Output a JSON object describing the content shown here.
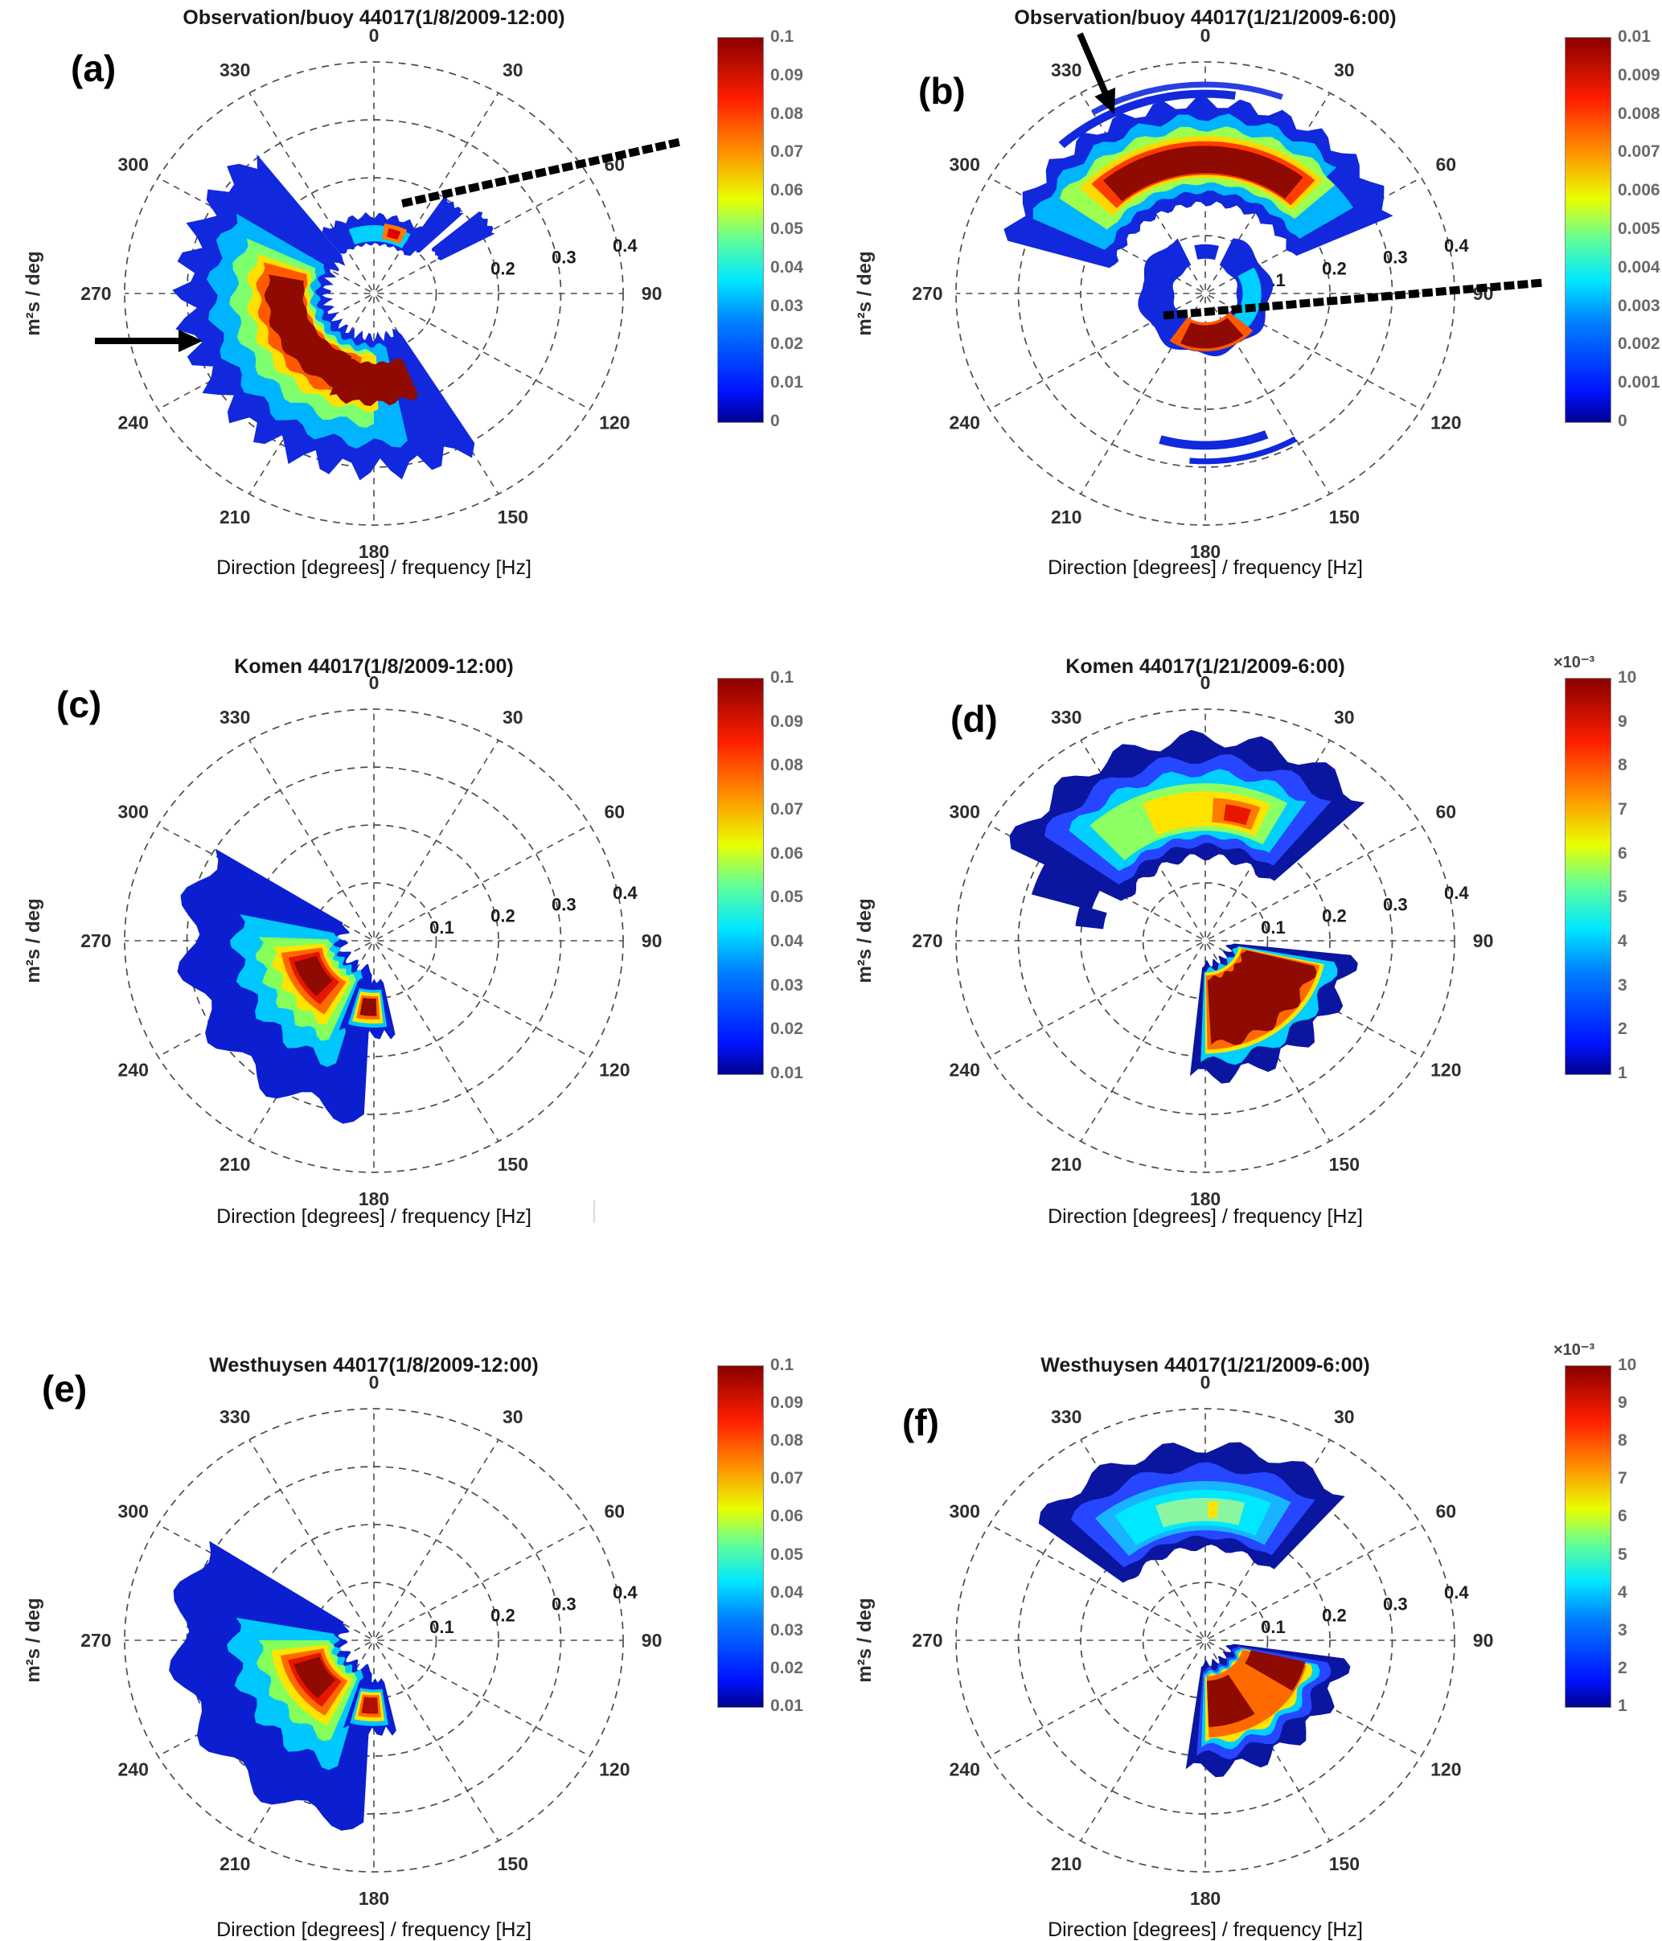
{
  "page": {
    "background": "#ffffff",
    "kind": "figure of six polar directional wave spectra"
  },
  "chart_data": {
    "type": "heatmap",
    "variant": "polar_directional_wave_spectrum",
    "layout": "3 rows x 2 columns, each panel with jet colorbar",
    "shared": {
      "angle_ticks_deg": [
        0,
        30,
        60,
        90,
        120,
        150,
        180,
        210,
        240,
        270,
        300,
        330
      ],
      "radial_ticks_hz": [
        0.1,
        0.2,
        0.3,
        0.4
      ],
      "radial_range_hz": [
        0,
        0.4
      ],
      "xlabel": "Direction [degrees] / frequency [Hz]",
      "ylabel": "m²s / deg",
      "colormap": "jet",
      "grid": "dashed"
    },
    "panels": [
      {
        "letter": "(a)",
        "title": "Observation/buoy 44017(1/8/2009-12:00)",
        "radial_labels": [
          "0.2",
          "0.3",
          "0.4"
        ],
        "colorbar": {
          "min": 0,
          "max": 0.1,
          "exponent": "",
          "ticks": [
            "0",
            "0.01",
            "0.02",
            "0.03",
            "0.04",
            "0.05",
            "0.06",
            "0.07",
            "0.08",
            "0.09",
            "0.1"
          ]
        },
        "peak_estimate": {
          "direction_deg": 250,
          "frequency_hz": 0.14
        },
        "annotations": {
          "arrow": [
            118,
            424,
            252,
            424
          ],
          "dotted_line": [
            505,
            252,
            848,
            176
          ]
        },
        "spectrum_blobs": [
          [
            148,
            322,
            0.075,
            0.305,
            "#1128dc",
            0.02,
            16
          ],
          [
            168,
            302,
            0.09,
            0.26,
            "#00b4ff",
            0.01,
            9
          ],
          [
            180,
            295,
            0.1,
            0.225,
            "#7dff6e",
            0.008,
            7
          ],
          [
            178,
            290,
            0.105,
            0.2,
            "#ffe000",
            0.006,
            7
          ],
          [
            190,
            287,
            0.11,
            0.185,
            "#ff5a00",
            0.005,
            6
          ],
          [
            198,
            281,
            0.113,
            0.172,
            "#8f0a00",
            0.004,
            5
          ],
          [
            158,
            202,
            0.12,
            0.19,
            "#8f0a00",
            0.006,
            4
          ],
          [
            322,
            402,
            0.085,
            0.135,
            "#1128dc",
            0.006,
            8
          ],
          [
            340,
            390,
            0.09,
            0.118,
            "#00cfff",
            0,
            0
          ],
          [
            368,
            386,
            0.095,
            0.122,
            "#ff7a00",
            0,
            0
          ],
          [
            372,
            382,
            0.1,
            0.115,
            "#e00000",
            0,
            0
          ],
          [
            34,
            46,
            0.1,
            0.2,
            "#1128dc",
            0.004,
            3
          ],
          [
            50,
            62,
            0.12,
            0.22,
            "#1128dc",
            0.004,
            3
          ]
        ]
      },
      {
        "letter": "(b)",
        "title": "Observation/buoy 44017(1/21/2009-6:00)",
        "radial_labels": [
          "0.1",
          "0.2",
          "0.3",
          "0.4"
        ],
        "colorbar": {
          "min": 0,
          "max": 0.01,
          "exponent": "",
          "ticks": [
            "0",
            "0.001",
            "0.002",
            "0.003",
            "0.004",
            "0.005",
            "0.006",
            "0.007",
            "0.008",
            "0.009",
            "0.01"
          ]
        },
        "peak_estimate": {
          "primary": {
            "direction_deg": 355,
            "frequency_hz": 0.23
          },
          "secondary": {
            "direction_deg": 165,
            "frequency_hz": 0.075
          }
        },
        "annotations": {
          "arrow": [
            309,
            42,
            352,
            142
          ],
          "dotted_line": [
            418,
            392,
            880,
            352
          ]
        },
        "spectrum_blobs": [
          [
            286,
            426,
            0.155,
            0.33,
            "#1128dc",
            0.012,
            12
          ],
          [
            295,
            418,
            0.175,
            0.305,
            "#00b4ff",
            0.008,
            9
          ],
          [
            305,
            408,
            0.19,
            0.285,
            "#9dff4f",
            0.006,
            7
          ],
          [
            312,
            404,
            0.2,
            0.272,
            "#ffd800",
            0,
            0
          ],
          [
            316,
            402,
            0.205,
            0.263,
            "#ff3c00",
            0,
            0
          ],
          [
            320,
            398,
            0.208,
            0.255,
            "#8f0a00",
            0,
            0
          ],
          [
            318,
            368,
            0.338,
            0.352,
            "#1128dc",
            0,
            0
          ],
          [
            330,
            380,
            0.356,
            0.366,
            "#2a3fe0",
            0,
            0
          ],
          [
            44,
            64,
            0.28,
            0.315,
            "#1128dc",
            0,
            0
          ],
          [
            25,
            335,
            0.052,
            0.105,
            "#1128dc",
            0.005,
            7
          ],
          [
            60,
            200,
            0.06,
            0.09,
            "#00cfff",
            0,
            0
          ],
          [
            130,
            215,
            0.05,
            0.1,
            "#ff5a00",
            0,
            0
          ],
          [
            140,
            205,
            0.055,
            0.095,
            "#8f0a00",
            0,
            0
          ],
          [
            348,
            375,
            0.06,
            0.085,
            "#1128dc",
            0,
            0
          ],
          [
            158,
            196,
            0.255,
            0.27,
            "#1128dc",
            0,
            0
          ],
          [
            150,
            185,
            0.285,
            0.295,
            "#1128dc",
            0,
            0
          ]
        ]
      },
      {
        "letter": "(c)",
        "title": "Komen 44017(1/8/2009-12:00)",
        "radial_labels": [
          "0.1",
          "0.2",
          "0.3",
          "0.4"
        ],
        "colorbar": {
          "min": 0.01,
          "max": 0.1,
          "exponent": "",
          "ticks": [
            "0.01",
            "0.02",
            "0.03",
            "0.04",
            "0.05",
            "0.06",
            "0.07",
            "0.08",
            "0.09",
            "0.1"
          ]
        },
        "peak_estimate": {
          "direction_deg": 240,
          "frequency_hz": 0.115
        },
        "annotations": {},
        "spectrum_blobs": [
          [
            183,
            302,
            0.05,
            0.3,
            "#0b1fd0",
            0.02,
            5
          ],
          [
            196,
            282,
            0.06,
            0.22,
            "#00c8ff",
            0.012,
            5
          ],
          [
            203,
            272,
            0.07,
            0.185,
            "#86ff5a",
            0.008,
            5
          ],
          [
            208,
            266,
            0.078,
            0.163,
            "#ffe400",
            0.006,
            4
          ],
          [
            212,
            262,
            0.084,
            0.15,
            "#ff6a00",
            0,
            0
          ],
          [
            218,
            258,
            0.09,
            0.14,
            "#e81500",
            0,
            0
          ],
          [
            224,
            254,
            0.095,
            0.133,
            "#8f0a00",
            0,
            0
          ],
          [
            168,
            200,
            0.07,
            0.165,
            "#0b1fd0",
            0.01,
            4
          ],
          [
            172,
            196,
            0.085,
            0.15,
            "#00c8ff",
            0,
            0
          ],
          [
            174,
            194,
            0.09,
            0.143,
            "#ffe400",
            0,
            0
          ],
          [
            176,
            192,
            0.096,
            0.136,
            "#ff6a00",
            0,
            0
          ],
          [
            178,
            190,
            0.1,
            0.13,
            "#8f0a00",
            0,
            0
          ]
        ]
      },
      {
        "letter": "(d)",
        "title": "Komen 44017(1/21/2009-6:00)",
        "radial_labels": [
          "0.1",
          "0.2",
          "0.3",
          "0.4"
        ],
        "colorbar": {
          "min": 0.001,
          "max": 0.01,
          "exponent": "×10⁻³",
          "ticks": [
            "1",
            "2",
            "3",
            "4",
            "5",
            "6",
            "7",
            "8",
            "9",
            "10"
          ]
        },
        "peak_estimate": {
          "primary": {
            "direction_deg": 150,
            "frequency_hz": 0.12
          },
          "secondary": {
            "direction_deg": 10,
            "frequency_hz": 0.225
          }
        },
        "annotations": {},
        "spectrum_blobs": [
          [
            297,
            407,
            0.145,
            0.35,
            "#0a16a0",
            0.015,
            6
          ],
          [
            305,
            400,
            0.165,
            0.315,
            "#2746ff",
            0.01,
            5
          ],
          [
            311,
            394,
            0.18,
            0.29,
            "#00cfff",
            0.008,
            5
          ],
          [
            317,
            389,
            0.19,
            0.272,
            "#8cff62",
            0,
            0
          ],
          [
            337,
            384,
            0.198,
            0.258,
            "#ffe400",
            0,
            0
          ],
          [
            363,
            381,
            0.205,
            0.247,
            "#ff7a00",
            0,
            0
          ],
          [
            368,
            378,
            0.21,
            0.238,
            "#e81500",
            0,
            0
          ],
          [
            286,
            299,
            0.19,
            0.29,
            "#0a16a0",
            0,
            0
          ],
          [
            277,
            287,
            0.165,
            0.21,
            "#0a16a0",
            0,
            0
          ],
          [
            96,
            186,
            0.04,
            0.235,
            "#0a16a0",
            0.015,
            5
          ],
          [
            100,
            182,
            0.05,
            0.21,
            "#00cfff",
            0.01,
            4
          ],
          [
            102,
            180,
            0.055,
            0.195,
            "#ffe400",
            0,
            0
          ],
          [
            103,
            179,
            0.06,
            0.188,
            "#ff6a00",
            0,
            0
          ],
          [
            104,
            177,
            0.065,
            0.18,
            "#8f0a00",
            0.008,
            4
          ]
        ]
      },
      {
        "letter": "(e)",
        "title": "Westhuysen 44017(1/8/2009-12:00)",
        "radial_labels": [
          "0.1",
          "0.2",
          "0.3",
          "0.4"
        ],
        "colorbar": {
          "min": 0.01,
          "max": 0.1,
          "exponent": "",
          "ticks": [
            "0.01",
            "0.02",
            "0.03",
            "0.04",
            "0.05",
            "0.06",
            "0.07",
            "0.08",
            "0.09",
            "0.1"
          ]
        },
        "peak_estimate": {
          "direction_deg": 245,
          "frequency_hz": 0.115
        },
        "annotations": {},
        "spectrum_blobs": [
          [
            183,
            303,
            0.05,
            0.315,
            "#0b1fd0",
            0.018,
            5
          ],
          [
            195,
            280,
            0.06,
            0.225,
            "#00c8ff",
            0.012,
            5
          ],
          [
            202,
            270,
            0.068,
            0.185,
            "#86ff5a",
            0.008,
            4
          ],
          [
            207,
            264,
            0.075,
            0.165,
            "#ffe400",
            0,
            0
          ],
          [
            211,
            260,
            0.082,
            0.152,
            "#ff6a00",
            0,
            0
          ],
          [
            216,
            256,
            0.088,
            0.142,
            "#e81500",
            0,
            0
          ],
          [
            222,
            252,
            0.092,
            0.135,
            "#8f0a00",
            0,
            0
          ],
          [
            167,
            198,
            0.07,
            0.16,
            "#0b1fd0",
            0.01,
            4
          ],
          [
            171,
            195,
            0.085,
            0.148,
            "#00c8ff",
            0,
            0
          ],
          [
            173,
            193,
            0.09,
            0.14,
            "#ffe400",
            0,
            0
          ],
          [
            175,
            191,
            0.095,
            0.133,
            "#ff6a00",
            0,
            0
          ],
          [
            177,
            189,
            0.099,
            0.127,
            "#b01000",
            0,
            0
          ]
        ]
      },
      {
        "letter": "(f)",
        "title": "Westhuysen 44017(1/21/2009-6:00)",
        "radial_labels": [
          "0.1",
          "0.2",
          "0.3",
          "0.4"
        ],
        "colorbar": {
          "min": 0.001,
          "max": 0.01,
          "exponent": "×10⁻³",
          "ticks": [
            "1",
            "2",
            "3",
            "4",
            "5",
            "6",
            "7",
            "8",
            "9",
            "10"
          ]
        },
        "peak_estimate": {
          "primary": {
            "direction_deg": 160,
            "frequency_hz": 0.11
          },
          "secondary": {
            "direction_deg": 0,
            "frequency_hz": 0.22
          }
        },
        "annotations": {},
        "spectrum_blobs": [
          [
            307,
            402,
            0.16,
            0.335,
            "#0a16a0",
            0.012,
            5
          ],
          [
            314,
            396,
            0.178,
            0.3,
            "#2746ff",
            0.008,
            4
          ],
          [
            320,
            390,
            0.19,
            0.275,
            "#18b4ff",
            0,
            0
          ],
          [
            326,
            384,
            0.198,
            0.26,
            "#00e8ff",
            0,
            0
          ],
          [
            341,
            375,
            0.206,
            0.246,
            "#8cf5a0",
            0,
            0
          ],
          [
            361,
            365,
            0.212,
            0.24,
            "#ffe400",
            0,
            0
          ],
          [
            98,
            188,
            0.04,
            0.225,
            "#0a16a0",
            0.014,
            5
          ],
          [
            101,
            184,
            0.05,
            0.2,
            "#2746ff",
            0.01,
            4
          ],
          [
            103,
            182,
            0.055,
            0.185,
            "#00cfff",
            0.008,
            4
          ],
          [
            104,
            180,
            0.06,
            0.175,
            "#ffe400",
            0.006,
            4
          ],
          [
            105,
            178,
            0.062,
            0.168,
            "#ff6a00",
            0,
            0
          ],
          [
            103,
            122,
            0.075,
            0.165,
            "#8f0a00",
            0,
            0
          ],
          [
            148,
            178,
            0.07,
            0.15,
            "#8f0a00",
            0,
            0
          ]
        ]
      }
    ]
  }
}
